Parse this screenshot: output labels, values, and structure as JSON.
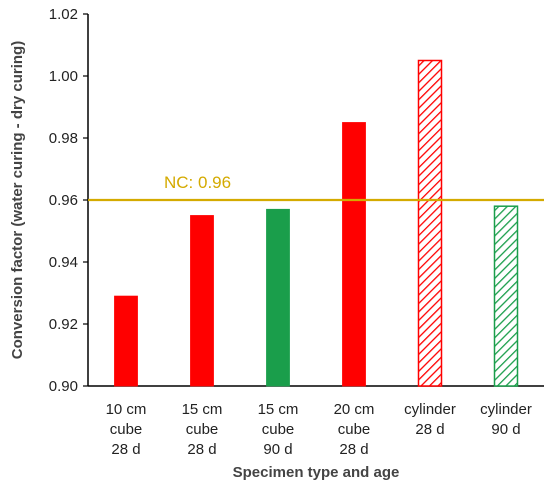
{
  "chart_data": {
    "type": "bar",
    "xlabel": "Specimen type and age",
    "ylabel": "Conversion factor (water curing - dry curing)",
    "ylim": [
      0.9,
      1.02
    ],
    "yticks": [
      "0.90",
      "0.92",
      "0.94",
      "0.96",
      "0.98",
      "1.00",
      "1.02"
    ],
    "grid": false,
    "categories": [
      [
        "10 cm",
        "cube",
        "28 d"
      ],
      [
        "15 cm",
        "cube",
        "28 d"
      ],
      [
        "15 cm",
        "cube",
        "90 d"
      ],
      [
        "20 cm",
        "cube",
        "28 d"
      ],
      [
        "cylinder",
        "28 d"
      ],
      [
        "cylinder",
        "90 d"
      ]
    ],
    "values": [
      0.929,
      0.955,
      0.957,
      0.985,
      1.005,
      0.958
    ],
    "bar_styles": [
      "solid",
      "solid",
      "solid",
      "solid",
      "hatched",
      "hatched"
    ],
    "bar_colors": [
      "#ff0000",
      "#ff0000",
      "#1a9e4b",
      "#ff0000",
      "#ff0000",
      "#1a9e4b"
    ],
    "reference_line": {
      "value": 0.96,
      "label": "NC: 0.96",
      "color": "#d4aa00"
    }
  }
}
